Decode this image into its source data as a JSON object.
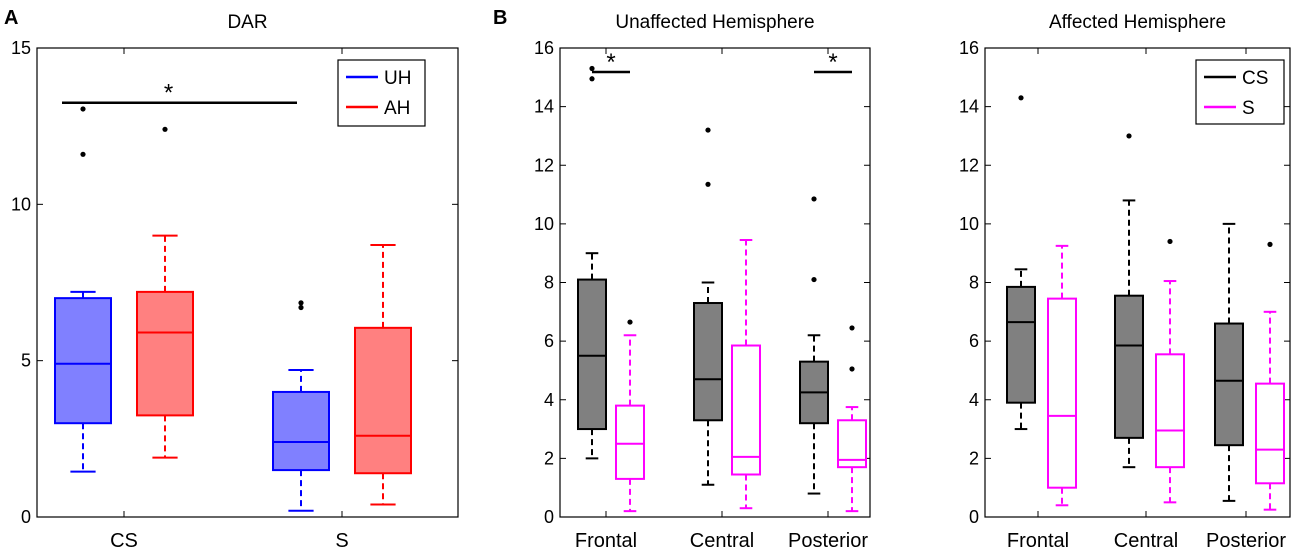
{
  "figure_labels": {
    "panel_a": "A",
    "panel_b": "B"
  },
  "colors": {
    "UH": "#0000ff",
    "UH_fill": "#8080ff",
    "AH": "#ff0000",
    "AH_fill": "#ff8080",
    "CS": "#000000",
    "CS_fill": "#808080",
    "S": "#ff00ff",
    "S_fill": "#ffffff"
  },
  "chart_data": [
    {
      "type": "box",
      "title": "DAR",
      "ylim": [
        0,
        15
      ],
      "yticks": [
        "0",
        "5",
        "10",
        "15"
      ],
      "categories": [
        "CS",
        "S"
      ],
      "legend": [
        "UH",
        "AH"
      ],
      "significance": [
        {
          "label": "*",
          "from": 0,
          "to": 1
        }
      ],
      "series": [
        {
          "name": "UH",
          "boxes": [
            {
              "lw": 1.45,
              "q1": 3.0,
              "med": 4.9,
              "q3": 7.0,
              "uw": 7.2,
              "outliers": [
                11.6,
                13.05
              ]
            },
            {
              "lw": 0.2,
              "q1": 1.5,
              "med": 2.4,
              "q3": 4.0,
              "uw": 4.7,
              "outliers": [
                6.7,
                6.85
              ]
            }
          ]
        },
        {
          "name": "AH",
          "boxes": [
            {
              "lw": 1.9,
              "q1": 3.25,
              "med": 5.9,
              "q3": 7.2,
              "uw": 9.0,
              "outliers": [
                12.4
              ]
            },
            {
              "lw": 0.4,
              "q1": 1.4,
              "med": 2.6,
              "q3": 6.05,
              "uw": 8.7,
              "outliers": []
            }
          ]
        }
      ]
    },
    {
      "type": "box",
      "title": "Unaffected Hemisphere",
      "ylim": [
        0,
        16
      ],
      "yticks": [
        "0",
        "2",
        "4",
        "6",
        "8",
        "10",
        "12",
        "14",
        "16"
      ],
      "categories": [
        "Frontal",
        "Central",
        "Posterior"
      ],
      "legend": [],
      "significance": [
        {
          "label": "*",
          "category": "Frontal"
        },
        {
          "label": "*",
          "category": "Posterior"
        }
      ],
      "series": [
        {
          "name": "CS",
          "boxes": [
            {
              "lw": 2.0,
              "q1": 3.0,
              "med": 5.5,
              "q3": 8.1,
              "uw": 9.0,
              "outliers": [
                14.95,
                15.3
              ]
            },
            {
              "lw": 1.1,
              "q1": 3.3,
              "med": 4.7,
              "q3": 7.3,
              "uw": 8.0,
              "outliers": [
                11.35,
                13.2
              ]
            },
            {
              "lw": 0.8,
              "q1": 3.2,
              "med": 4.25,
              "q3": 5.3,
              "uw": 6.2,
              "outliers": [
                8.1,
                10.85
              ]
            }
          ]
        },
        {
          "name": "S",
          "boxes": [
            {
              "lw": 0.2,
              "q1": 1.3,
              "med": 2.5,
              "q3": 3.8,
              "uw": 6.2,
              "outliers": [
                6.65
              ]
            },
            {
              "lw": 0.3,
              "q1": 1.45,
              "med": 2.05,
              "q3": 5.85,
              "uw": 9.45,
              "outliers": []
            },
            {
              "lw": 0.2,
              "q1": 1.7,
              "med": 1.95,
              "q3": 3.3,
              "uw": 3.75,
              "outliers": [
                5.05,
                6.45
              ]
            }
          ]
        }
      ]
    },
    {
      "type": "box",
      "title": "Affected Hemisphere",
      "ylim": [
        0,
        16
      ],
      "yticks": [
        "0",
        "2",
        "4",
        "6",
        "8",
        "10",
        "12",
        "14",
        "16"
      ],
      "categories": [
        "Frontal",
        "Central",
        "Posterior"
      ],
      "legend": [
        "CS",
        "S"
      ],
      "significance": [],
      "series": [
        {
          "name": "CS",
          "boxes": [
            {
              "lw": 3.0,
              "q1": 3.9,
              "med": 6.65,
              "q3": 7.85,
              "uw": 8.45,
              "outliers": [
                14.3
              ]
            },
            {
              "lw": 1.7,
              "q1": 2.7,
              "med": 5.85,
              "q3": 7.55,
              "uw": 10.8,
              "outliers": [
                13.0
              ]
            },
            {
              "lw": 0.55,
              "q1": 2.45,
              "med": 4.65,
              "q3": 6.6,
              "uw": 10.0,
              "outliers": []
            }
          ]
        },
        {
          "name": "S",
          "boxes": [
            {
              "lw": 0.4,
              "q1": 1.0,
              "med": 3.45,
              "q3": 7.45,
              "uw": 9.25,
              "outliers": []
            },
            {
              "lw": 0.5,
              "q1": 1.7,
              "med": 2.95,
              "q3": 5.55,
              "uw": 8.05,
              "outliers": [
                9.4
              ]
            },
            {
              "lw": 0.25,
              "q1": 1.15,
              "med": 2.3,
              "q3": 4.55,
              "uw": 7.0,
              "outliers": [
                9.3
              ]
            }
          ]
        }
      ]
    }
  ]
}
